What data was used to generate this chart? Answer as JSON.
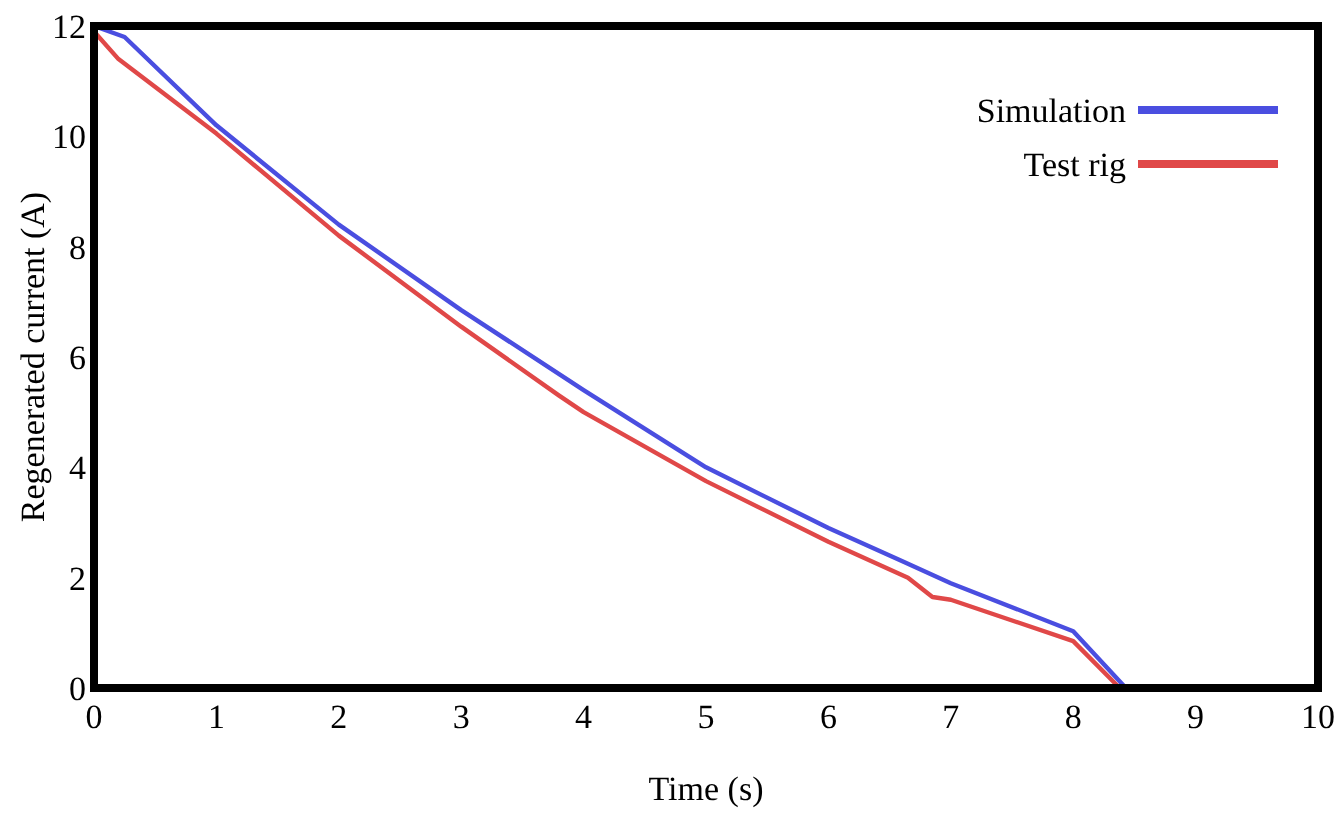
{
  "chart_data": {
    "type": "line",
    "xlabel": "Time (s)",
    "ylabel": "Regenerated current (A)",
    "xlim": [
      0,
      10
    ],
    "xticks": [
      0,
      1,
      2,
      3,
      4,
      5,
      6,
      7,
      8,
      9,
      10
    ],
    "ylim": [
      0,
      12
    ],
    "yticks": [
      0,
      2,
      4,
      6,
      8,
      10,
      12
    ],
    "grid": false,
    "legend": "top right",
    "marker": "none",
    "line_style": "solid",
    "series": [
      {
        "name": "Simulation",
        "color": "#4a4ee0",
        "x": [
          0,
          0.25,
          1,
          2,
          3,
          4,
          5,
          6,
          6.6,
          7,
          8,
          8.43
        ],
        "values": [
          12,
          11.8,
          10.2,
          8.4,
          6.85,
          5.4,
          4.0,
          2.9,
          2.3,
          1.9,
          1.03,
          0
        ]
      },
      {
        "name": "Test rig",
        "color": "#e04848",
        "x": [
          0,
          0.2,
          1,
          2,
          3,
          3.8,
          4,
          5,
          6,
          6.65,
          6.85,
          7,
          8,
          8.38
        ],
        "values": [
          11.9,
          11.4,
          10.05,
          8.2,
          6.55,
          5.3,
          5.0,
          3.75,
          2.65,
          2.0,
          1.65,
          1.6,
          0.85,
          0
        ]
      }
    ]
  }
}
